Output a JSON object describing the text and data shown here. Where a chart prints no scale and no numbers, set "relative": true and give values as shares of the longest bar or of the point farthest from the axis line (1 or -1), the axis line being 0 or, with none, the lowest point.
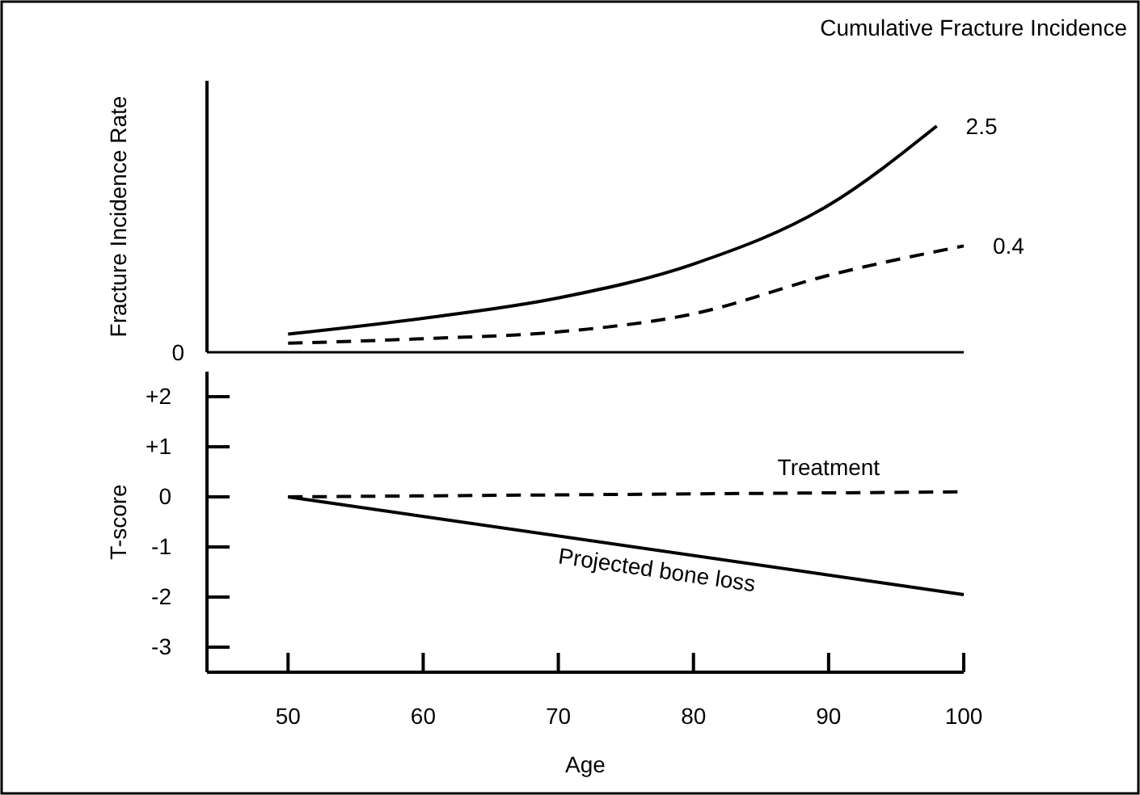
{
  "chart_data": [
    {
      "type": "line",
      "ylabel": "Fracture Incidence Rate",
      "relative": true,
      "xlim": [
        44,
        100
      ],
      "annotations": [
        "Cumulative Fracture Incidence",
        "0"
      ],
      "series": [
        {
          "name": "2.5",
          "color": "#000000",
          "line_style": "solid",
          "x": [
            50,
            60,
            70,
            80,
            90,
            98
          ],
          "values": [
            0.08,
            0.15,
            0.24,
            0.39,
            0.65,
            1
          ]
        },
        {
          "name": "0.4",
          "color": "#000000",
          "line_style": "dashed",
          "x": [
            50,
            60,
            70,
            80,
            90,
            100
          ],
          "values": [
            0.04,
            0.06,
            0.09,
            0.17,
            0.34,
            0.47
          ]
        }
      ]
    },
    {
      "type": "line",
      "ylabel": "T-score",
      "xlabel": "Age",
      "xlim": [
        44,
        100
      ],
      "ylim": [
        -3.5,
        2.5
      ],
      "xticks": [
        50,
        60,
        70,
        80,
        90,
        100
      ],
      "yticks": [
        {
          "value": 2,
          "label": "+2"
        },
        {
          "value": 1,
          "label": "+1"
        },
        0,
        -1,
        -2,
        -3
      ],
      "series": [
        {
          "name": "Treatment",
          "color": "#000000",
          "line_style": "dashed",
          "x": [
            50,
            100
          ],
          "values": [
            0,
            0.1
          ]
        },
        {
          "name": "Projected bone loss",
          "color": "#000000",
          "line_style": "solid",
          "x": [
            50,
            100
          ],
          "values": [
            0,
            -1.95
          ]
        }
      ]
    }
  ]
}
